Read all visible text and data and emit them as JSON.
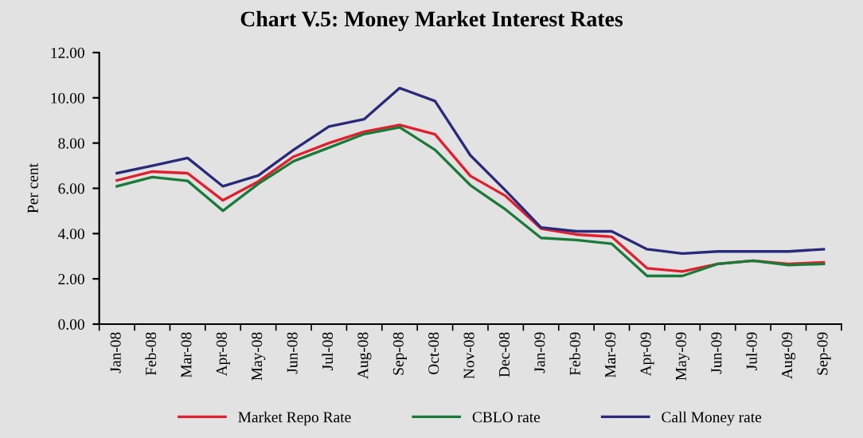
{
  "chart_data": {
    "type": "line",
    "title": "Chart V.5: Money Market Interest Rates",
    "ylabel": "Per cent",
    "categories": [
      "Jan-08",
      "Feb-08",
      "Mar-08",
      "Apr-08",
      "May-08",
      "Jun-08",
      "Jul-08",
      "Aug-08",
      "Sep-08",
      "Oct-08",
      "Nov-08",
      "Dec-08",
      "Jan-09",
      "Feb-09",
      "Mar-09",
      "Apr-09",
      "May-09",
      "Jun-09",
      "Jul-09",
      "Aug-09",
      "Sep-09"
    ],
    "series": [
      {
        "name": "Market Repo Rate",
        "color": "#e0202e",
        "values": [
          6.35,
          6.74,
          6.67,
          5.47,
          6.3,
          7.4,
          8.0,
          8.5,
          8.8,
          8.39,
          6.55,
          5.66,
          4.22,
          3.96,
          3.86,
          2.47,
          2.33,
          2.66,
          2.8,
          2.66,
          2.73
        ]
      },
      {
        "name": "CBLO rate",
        "color": "#1a7a3a",
        "values": [
          6.09,
          6.5,
          6.33,
          5.01,
          6.2,
          7.2,
          7.8,
          8.4,
          8.7,
          7.7,
          6.14,
          5.06,
          3.81,
          3.72,
          3.55,
          2.13,
          2.13,
          2.66,
          2.8,
          2.61,
          2.66
        ]
      },
      {
        "name": "Call Money rate",
        "color": "#2a2a7a",
        "values": [
          6.67,
          7.0,
          7.34,
          6.09,
          6.57,
          7.7,
          8.73,
          9.06,
          10.43,
          9.86,
          7.46,
          5.9,
          4.27,
          4.1,
          4.1,
          3.31,
          3.12,
          3.21,
          3.21,
          3.21,
          3.31
        ]
      }
    ],
    "ylim": [
      0,
      12
    ],
    "yticks": [
      {
        "value": 0,
        "label": "0.00"
      },
      {
        "value": 2,
        "label": "2.00"
      },
      {
        "value": 4,
        "label": "4.00"
      },
      {
        "value": 6,
        "label": "6.00"
      },
      {
        "value": 8,
        "label": "8.00"
      },
      {
        "value": 10,
        "label": "10.00"
      },
      {
        "value": 12,
        "label": "12.00"
      }
    ],
    "grid": false,
    "legend": "bottom",
    "marker": "none",
    "line_style": "solid"
  }
}
